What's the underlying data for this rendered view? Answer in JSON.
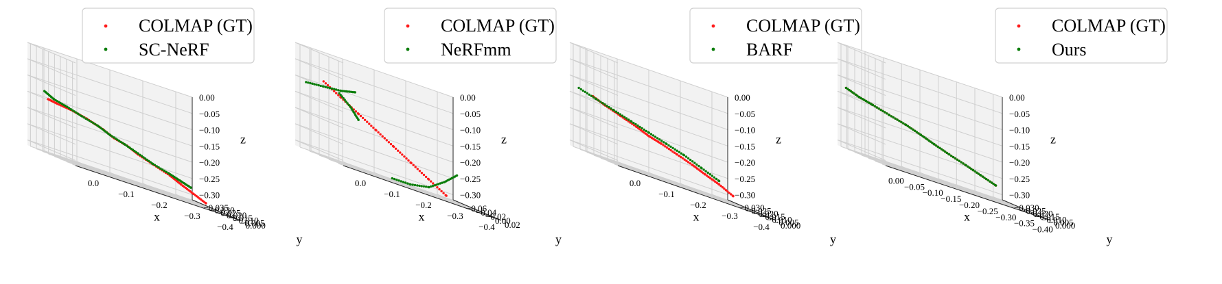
{
  "colors": {
    "gt": "#ff1a1a",
    "est": "#0a7d0a"
  },
  "chart_data": [
    {
      "type": "scatter",
      "legend": [
        "COLMAP (GT)",
        "SC-NeRF"
      ],
      "xlabel": "x",
      "ylabel": "y",
      "zlabel": "z",
      "xlim": [
        0.05,
        -0.4
      ],
      "ylim": [
        0.0,
        -0.035
      ],
      "zlim": [
        0.0,
        -0.3
      ],
      "xticks": [
        "0.0",
        "−0.1",
        "−0.2",
        "−0.3",
        "−0.4"
      ],
      "yticks": [
        "0.000",
        "−0.005",
        "−0.010",
        "−0.015",
        "−0.020",
        "−0.025",
        "−0.030",
        "−0.035"
      ],
      "zticks": [
        "0.00",
        "−0.05",
        "−0.10",
        "−0.15",
        "−0.20",
        "−0.25",
        "−0.30"
      ],
      "series": [
        {
          "name": "COLMAP (GT)",
          "color": "#ff1a1a",
          "path": [
            [
              0.05,
              -0.02,
              -0.14
            ],
            [
              0.02,
              -0.021,
              -0.145
            ],
            [
              -0.02,
              -0.022,
              -0.15
            ],
            [
              -0.06,
              -0.021,
              -0.16
            ],
            [
              -0.1,
              -0.02,
              -0.175
            ],
            [
              -0.13,
              -0.02,
              -0.19
            ],
            [
              -0.17,
              -0.021,
              -0.2
            ],
            [
              -0.2,
              -0.021,
              -0.215
            ],
            [
              -0.24,
              -0.02,
              -0.23
            ],
            [
              -0.28,
              -0.019,
              -0.245
            ],
            [
              -0.31,
              -0.019,
              -0.26
            ],
            [
              -0.34,
              -0.018,
              -0.275
            ],
            [
              -0.37,
              -0.017,
              -0.29
            ]
          ]
        },
        {
          "name": "SC-NeRF",
          "color": "#0a7d0a",
          "path": [
            [
              0.06,
              -0.02,
              -0.12
            ],
            [
              0.03,
              -0.021,
              -0.135
            ],
            [
              -0.01,
              -0.022,
              -0.145
            ],
            [
              -0.05,
              -0.022,
              -0.158
            ],
            [
              -0.09,
              -0.021,
              -0.17
            ],
            [
              -0.12,
              -0.02,
              -0.185
            ],
            [
              -0.16,
              -0.02,
              -0.198
            ],
            [
              -0.2,
              -0.021,
              -0.212
            ],
            [
              -0.24,
              -0.021,
              -0.228
            ],
            [
              -0.28,
              -0.02,
              -0.24
            ],
            [
              -0.31,
              -0.02,
              -0.25
            ],
            [
              -0.34,
              -0.02,
              -0.26
            ]
          ]
        }
      ]
    },
    {
      "type": "scatter",
      "legend": [
        "COLMAP (GT)",
        "NeRFmm"
      ],
      "xlabel": "x",
      "ylabel": "y",
      "zlabel": "z",
      "xlim": [
        0.05,
        -0.4
      ],
      "ylim": [
        0.03,
        -0.06
      ],
      "zlim": [
        0.0,
        -0.3
      ],
      "xticks": [
        "0.0",
        "−0.1",
        "−0.2",
        "−0.3",
        "−0.4"
      ],
      "yticks": [
        "0.02",
        "0.00",
        "−0.02",
        "−0.04",
        "−0.06"
      ],
      "zticks": [
        "0.00",
        "−0.05",
        "−0.10",
        "−0.15",
        "−0.20",
        "−0.25",
        "−0.30"
      ],
      "series": [
        {
          "name": "COLMAP (GT)",
          "color": "#ff1a1a",
          "path": [
            [
              0.03,
              -0.02,
              -0.08
            ],
            [
              -0.02,
              -0.02,
              -0.11
            ],
            [
              -0.07,
              -0.02,
              -0.14
            ],
            [
              -0.12,
              -0.02,
              -0.17
            ],
            [
              -0.17,
              -0.02,
              -0.2
            ],
            [
              -0.22,
              -0.02,
              -0.23
            ],
            [
              -0.27,
              -0.02,
              -0.26
            ],
            [
              -0.32,
              -0.02,
              -0.29
            ]
          ]
        },
        {
          "name": "NeRFmm",
          "color": "#0a7d0a",
          "path": [
            [
              0.08,
              -0.02,
              -0.1
            ],
            [
              0.03,
              -0.02,
              -0.095
            ],
            [
              -0.02,
              -0.02,
              -0.09
            ],
            [
              -0.06,
              -0.02,
              -0.08
            ]
          ]
        },
        {
          "name": "NeRFmm",
          "color": "#0a7d0a",
          "path": [
            [
              -0.03,
              -0.03,
              -0.1
            ],
            [
              -0.07,
              -0.035,
              -0.13
            ],
            [
              -0.1,
              -0.04,
              -0.16
            ]
          ]
        },
        {
          "name": "NeRFmm",
          "color": "#0a7d0a",
          "path": [
            [
              -0.12,
              0.01,
              -0.29
            ],
            [
              -0.18,
              0.005,
              -0.29
            ],
            [
              -0.24,
              0.0,
              -0.28
            ],
            [
              -0.3,
              -0.01,
              -0.25
            ],
            [
              -0.35,
              -0.02,
              -0.22
            ]
          ]
        }
      ]
    },
    {
      "type": "scatter",
      "legend": [
        "COLMAP (GT)",
        "BARF"
      ],
      "xlabel": "x",
      "ylabel": "y",
      "zlabel": "z",
      "xlim": [
        0.05,
        -0.4
      ],
      "ylim": [
        0.0,
        -0.03
      ],
      "zlim": [
        0.0,
        -0.3
      ],
      "xticks": [
        "0.0",
        "−0.1",
        "−0.2",
        "−0.3",
        "−0.4"
      ],
      "yticks": [
        "0.000",
        "−0.005",
        "−0.010",
        "−0.015",
        "−0.020",
        "−0.025",
        "−0.030"
      ],
      "zticks": [
        "0.00",
        "−0.05",
        "−0.10",
        "−0.15",
        "−0.20",
        "−0.25",
        "−0.30"
      ],
      "series": [
        {
          "name": "COLMAP (GT)",
          "color": "#ff1a1a",
          "path": [
            [
              0.03,
              -0.02,
              -0.13
            ],
            [
              -0.01,
              -0.021,
              -0.145
            ],
            [
              -0.05,
              -0.02,
              -0.16
            ],
            [
              -0.09,
              -0.019,
              -0.175
            ],
            [
              -0.13,
              -0.02,
              -0.19
            ],
            [
              -0.17,
              -0.021,
              -0.2
            ],
            [
              -0.21,
              -0.02,
              -0.215
            ],
            [
              -0.25,
              -0.019,
              -0.23
            ],
            [
              -0.29,
              -0.02,
              -0.245
            ],
            [
              -0.33,
              -0.02,
              -0.26
            ],
            [
              -0.37,
              -0.02,
              -0.28
            ]
          ]
        },
        {
          "name": "BARF",
          "color": "#0a7d0a",
          "path": [
            [
              0.07,
              -0.02,
              -0.12
            ],
            [
              0.02,
              -0.02,
              -0.135
            ],
            [
              -0.03,
              -0.02,
              -0.15
            ],
            [
              -0.08,
              -0.02,
              -0.165
            ],
            [
              -0.13,
              -0.02,
              -0.18
            ],
            [
              -0.18,
              -0.02,
              -0.195
            ],
            [
              -0.23,
              -0.02,
              -0.21
            ],
            [
              -0.28,
              -0.02,
              -0.23
            ],
            [
              -0.33,
              -0.02,
              -0.25
            ]
          ]
        }
      ]
    },
    {
      "type": "scatter",
      "legend": [
        "COLMAP (GT)",
        "Ours"
      ],
      "xlabel": "x",
      "ylabel": "y",
      "zlabel": "z",
      "xlim": [
        0.02,
        -0.42
      ],
      "ylim": [
        0.0,
        -0.03
      ],
      "zlim": [
        0.0,
        -0.3
      ],
      "xticks": [
        "0.00",
        "−0.05",
        "−0.10",
        "−0.15",
        "−0.20",
        "−0.25",
        "−0.30",
        "−0.35",
        "−0.40"
      ],
      "yticks": [
        "0.000",
        "−0.005",
        "−0.010",
        "−0.015",
        "−0.020",
        "−0.025",
        "−0.030"
      ],
      "zticks": [
        "0.00",
        "−0.05",
        "−0.10",
        "−0.15",
        "−0.20",
        "−0.25",
        "−0.30"
      ],
      "series": [
        {
          "name": "COLMAP (GT)",
          "color": "#ff1a1a",
          "path": [
            [
              0.04,
              -0.02,
              -0.12
            ],
            [
              0.0,
              -0.021,
              -0.135
            ],
            [
              -0.04,
              -0.022,
              -0.145
            ],
            [
              -0.08,
              -0.021,
              -0.158
            ],
            [
              -0.12,
              -0.02,
              -0.17
            ],
            [
              -0.16,
              -0.02,
              -0.185
            ],
            [
              -0.2,
              -0.021,
              -0.2
            ],
            [
              -0.24,
              -0.021,
              -0.215
            ],
            [
              -0.28,
              -0.02,
              -0.23
            ],
            [
              -0.32,
              -0.02,
              -0.245
            ],
            [
              -0.36,
              -0.02,
              -0.26
            ]
          ]
        },
        {
          "name": "Ours",
          "color": "#0a7d0a",
          "path": [
            [
              0.04,
              -0.02,
              -0.12
            ],
            [
              0.0,
              -0.021,
              -0.135
            ],
            [
              -0.04,
              -0.022,
              -0.145
            ],
            [
              -0.08,
              -0.021,
              -0.158
            ],
            [
              -0.12,
              -0.02,
              -0.17
            ],
            [
              -0.16,
              -0.02,
              -0.185
            ],
            [
              -0.2,
              -0.021,
              -0.2
            ],
            [
              -0.24,
              -0.021,
              -0.215
            ],
            [
              -0.28,
              -0.02,
              -0.23
            ],
            [
              -0.32,
              -0.02,
              -0.245
            ],
            [
              -0.36,
              -0.02,
              -0.26
            ]
          ]
        }
      ]
    }
  ]
}
